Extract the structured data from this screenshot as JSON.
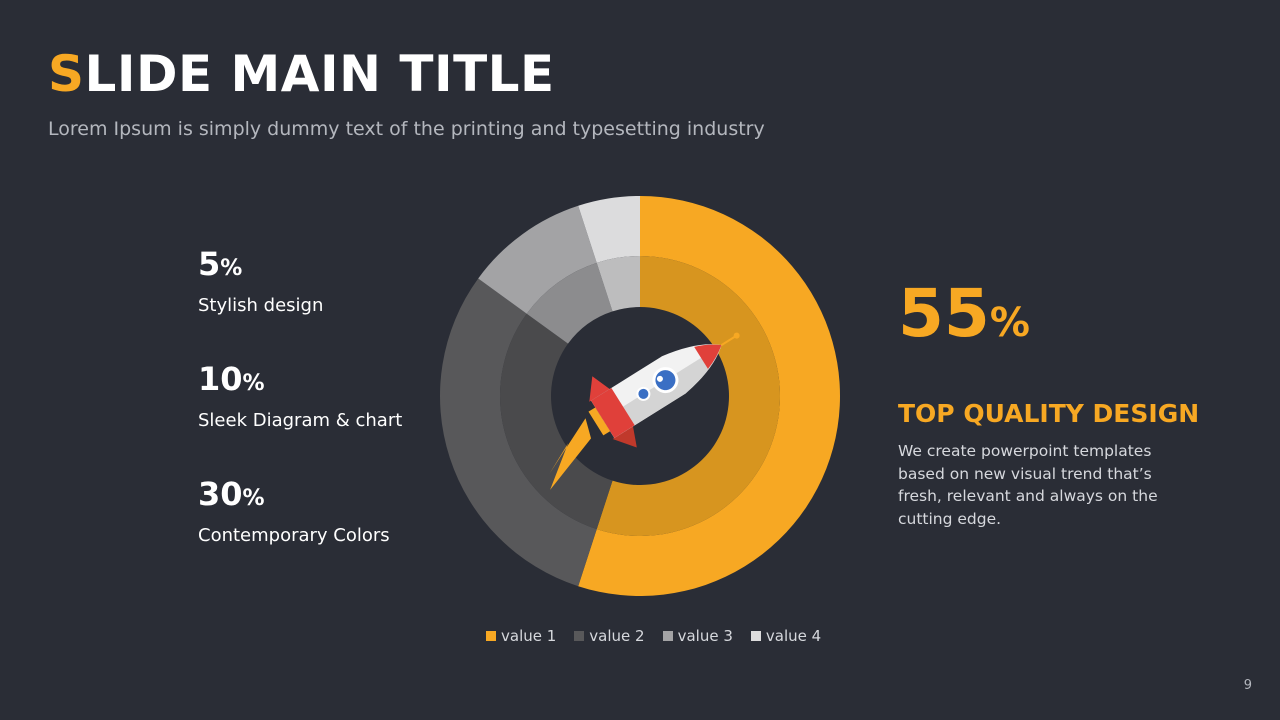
{
  "slide": {
    "title_first": "S",
    "title_rest": "LIDE MAIN TITLE",
    "subtitle": "Lorem Ipsum is simply dummy text of the printing and typesetting industry",
    "page_number": "9"
  },
  "stats": [
    {
      "value": "5",
      "sign": "%",
      "label": "Stylish design"
    },
    {
      "value": "10",
      "sign": "%",
      "label": "Sleek Diagram & chart"
    },
    {
      "value": "30",
      "sign": "%",
      "label": "Contemporary Colors"
    }
  ],
  "highlight": {
    "value": "55",
    "sign": "%",
    "heading": "TOP QUALITY DESIGN",
    "body": "We create powerpoint templates based on new visual trend that’s fresh, relevant and always on the cutting edge."
  },
  "chart_data": {
    "type": "pie",
    "variant": "donut",
    "categories": [
      "value 1",
      "value 2",
      "value 3",
      "value 4"
    ],
    "values": [
      55,
      30,
      10,
      5
    ],
    "colors": [
      "#f7a823",
      "#58585a",
      "#a3a3a5",
      "#dcdcdd"
    ],
    "inner_colors": [
      "#d7951f",
      "#4a4a4c",
      "#8c8c8e",
      "#bdbdbe"
    ],
    "legend": "bottom",
    "center_icon": "rocket-icon"
  }
}
